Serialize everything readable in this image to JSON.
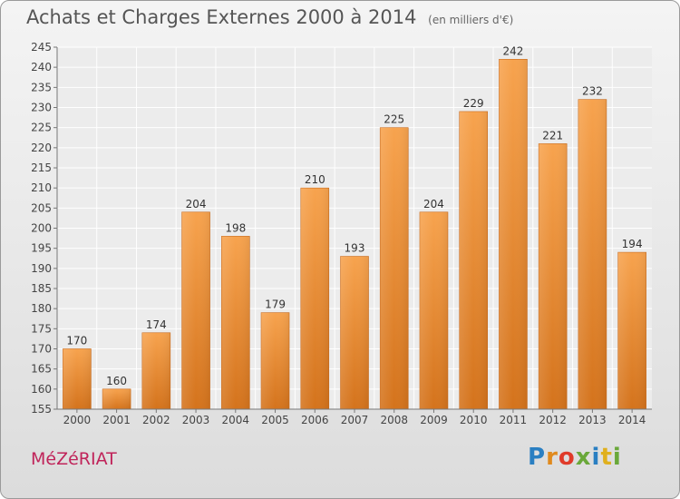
{
  "chart_data": {
    "type": "bar",
    "title": "Achats et Charges Externes 2000 à 2014",
    "subtitle": "(en milliers d'€)",
    "categories": [
      "2000",
      "2001",
      "2002",
      "2003",
      "2004",
      "2005",
      "2006",
      "2007",
      "2008",
      "2009",
      "2010",
      "2011",
      "2012",
      "2013",
      "2014"
    ],
    "values": [
      170,
      160,
      174,
      204,
      198,
      179,
      210,
      193,
      225,
      204,
      229,
      242,
      221,
      232,
      194
    ],
    "ylim": [
      155,
      245
    ],
    "yticks": [
      155,
      160,
      165,
      170,
      175,
      180,
      185,
      190,
      195,
      200,
      205,
      210,
      215,
      220,
      225,
      230,
      235,
      240,
      245
    ],
    "grid": true,
    "bar_color": "#f0913a"
  },
  "footer": {
    "place": "MéZéRIAT",
    "logo_letters": [
      "P",
      "r",
      "o",
      "x",
      "i",
      "t",
      "i"
    ],
    "logo_colors": [
      "#2a7fc2",
      "#e08a1e",
      "#e03b2a",
      "#6aa83a",
      "#2a7fc2",
      "#e0b01e",
      "#6aa83a"
    ]
  }
}
